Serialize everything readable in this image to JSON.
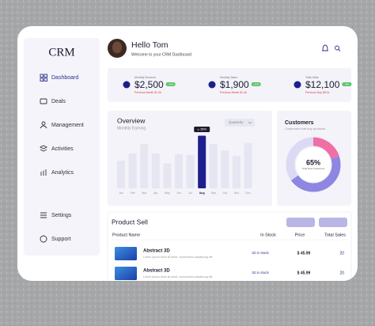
{
  "sidebar": {
    "logo": "CRM",
    "nav": [
      "Dashboard",
      "Deals",
      "Management",
      "Activities",
      "Analytics"
    ],
    "bottom_nav": [
      "Settings",
      "Support"
    ]
  },
  "header": {
    "greeting": "Hello Tom",
    "subtitle": "Welcome to your CRM Dashboard"
  },
  "stats": [
    {
      "label": "Monthly Revenue",
      "value": "$2,500",
      "badge": "+15%",
      "note": "Previous Month $1.2k"
    },
    {
      "label": "Monthly Sales",
      "value": "$1,900",
      "badge": "+10%",
      "note": "Previous Month $1.4k"
    },
    {
      "label": "Total Visits",
      "value": "$12,100",
      "badge": "+8%",
      "note": "Previous Day $8.1k"
    }
  ],
  "chart_data": {
    "type": "bar",
    "title": "Overview",
    "subtitle": "Monthly Earning",
    "dropdown": "Quarterly",
    "categories": [
      "Jan",
      "Feb",
      "Mar",
      "Apr",
      "May",
      "Jun",
      "Jul",
      "Aug",
      "Sep",
      "Oct",
      "Nov",
      "Dec"
    ],
    "values": [
      50,
      63,
      80,
      63,
      45,
      62,
      60,
      95,
      80,
      68,
      58,
      82
    ],
    "color": "#e6e5f2",
    "highlight_category": "Aug",
    "highlight_color": "#1e1f8c",
    "tooltip": "35%"
  },
  "customers": {
    "title": "Customers",
    "subtitle": "Customers that buy products",
    "segments": [
      20,
      45
    ],
    "segment_colors": [
      "#f06fa6",
      "#8d87e2"
    ],
    "center_value": "65%",
    "center_label": "Total New Customers"
  },
  "table": {
    "title": "Product Sell",
    "headers": [
      "Product Name",
      "In Stock",
      "Price",
      "Total Sales"
    ],
    "rows": [
      [
        "Abstract 3D",
        "Lorem ipsum dolor sit amet, consectetur adipisicing elit.",
        "32 in stock",
        "$ 45.99",
        "20"
      ],
      [
        "Abstract 3D",
        "Lorem ipsum dolor sit amet, consectetur adipisicing elit.",
        "32 in stock",
        "$ 45.99",
        "20"
      ]
    ]
  }
}
